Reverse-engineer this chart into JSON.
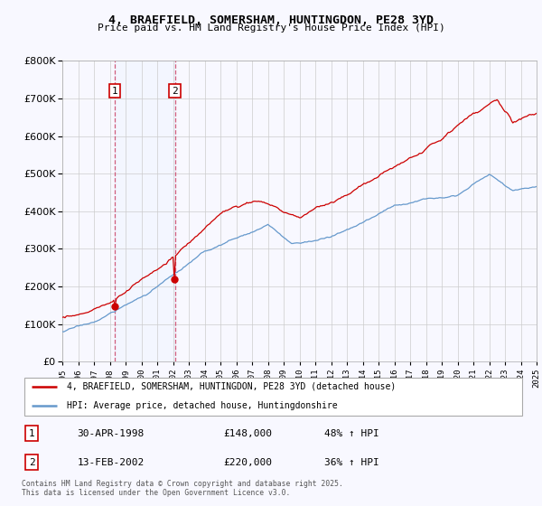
{
  "title": "4, BRAEFIELD, SOMERSHAM, HUNTINGDON, PE28 3YD",
  "subtitle": "Price paid vs. HM Land Registry's House Price Index (HPI)",
  "legend_line1": "4, BRAEFIELD, SOMERSHAM, HUNTINGDON, PE28 3YD (detached house)",
  "legend_line2": "HPI: Average price, detached house, Huntingdonshire",
  "copyright": "Contains HM Land Registry data © Crown copyright and database right 2025.\nThis data is licensed under the Open Government Licence v3.0.",
  "sale1_label": "1",
  "sale1_date": "30-APR-1998",
  "sale1_price": "£148,000",
  "sale1_hpi": "48% ↑ HPI",
  "sale2_label": "2",
  "sale2_date": "13-FEB-2002",
  "sale2_price": "£220,000",
  "sale2_hpi": "36% ↑ HPI",
  "sale1_year": 1998.33,
  "sale2_year": 2002.12,
  "red_color": "#cc0000",
  "blue_color": "#6699cc",
  "bg_color": "#f8f8ff",
  "grid_color": "#cccccc",
  "highlight_color": "#ddeeff",
  "ylim_max": 800000,
  "year_start": 1995,
  "year_end": 2025
}
